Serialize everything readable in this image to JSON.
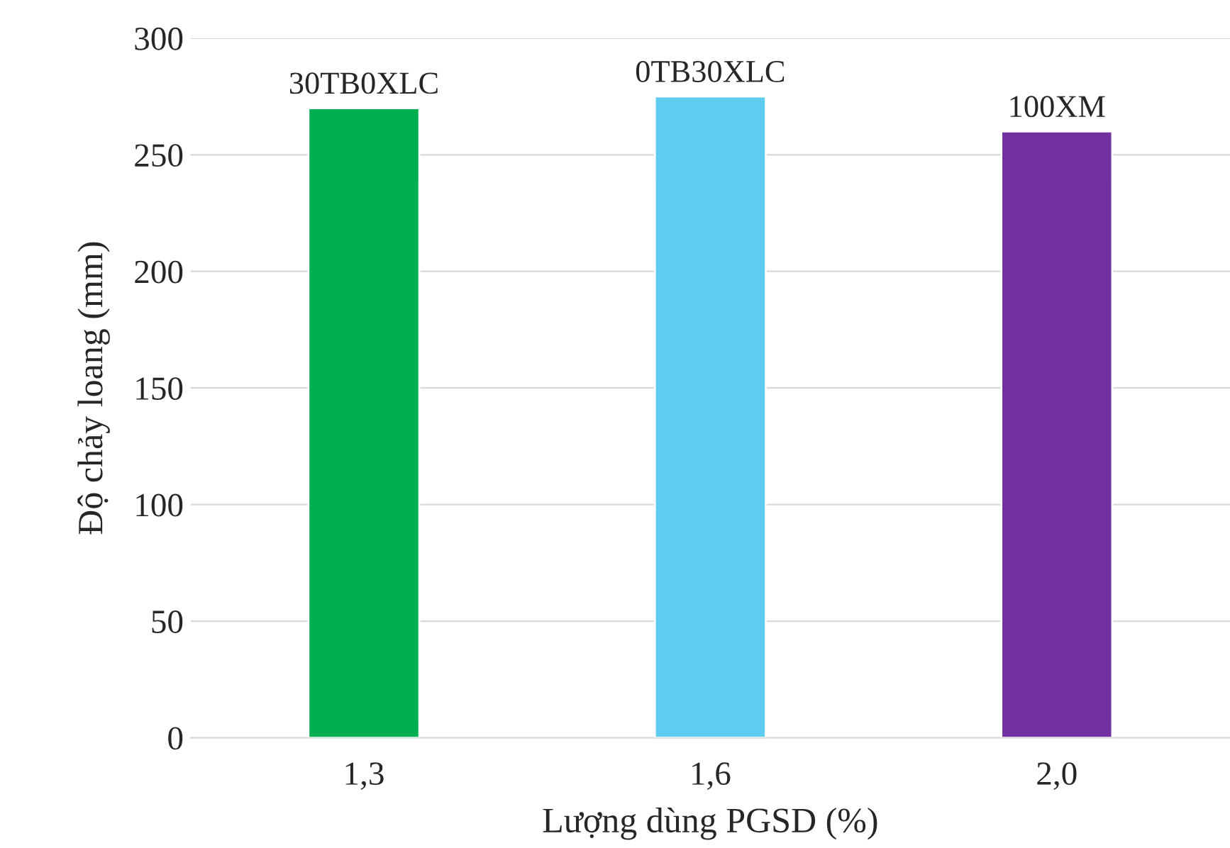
{
  "chart_data": {
    "type": "bar",
    "xlabel": "Lượng dùng PGSD (%)",
    "ylabel": "Độ chảy loang (mm)",
    "categories": [
      "1,3",
      "1,6",
      "2,0"
    ],
    "values": [
      270,
      275,
      260
    ],
    "colors": [
      "#00b050",
      "#5ecbf0",
      "#7030a0"
    ],
    "ylim": [
      0,
      300
    ],
    "yticks": [
      0,
      50,
      100,
      150,
      200,
      250,
      300
    ],
    "grid": "y",
    "annotations": [
      {
        "text": "30TB0XLC",
        "x": "1,3",
        "y": 270
      },
      {
        "text": "0TB30XLC",
        "x": "1,6",
        "y": 275
      },
      {
        "text": "100XM",
        "x": "2,0",
        "y": 260
      }
    ]
  }
}
